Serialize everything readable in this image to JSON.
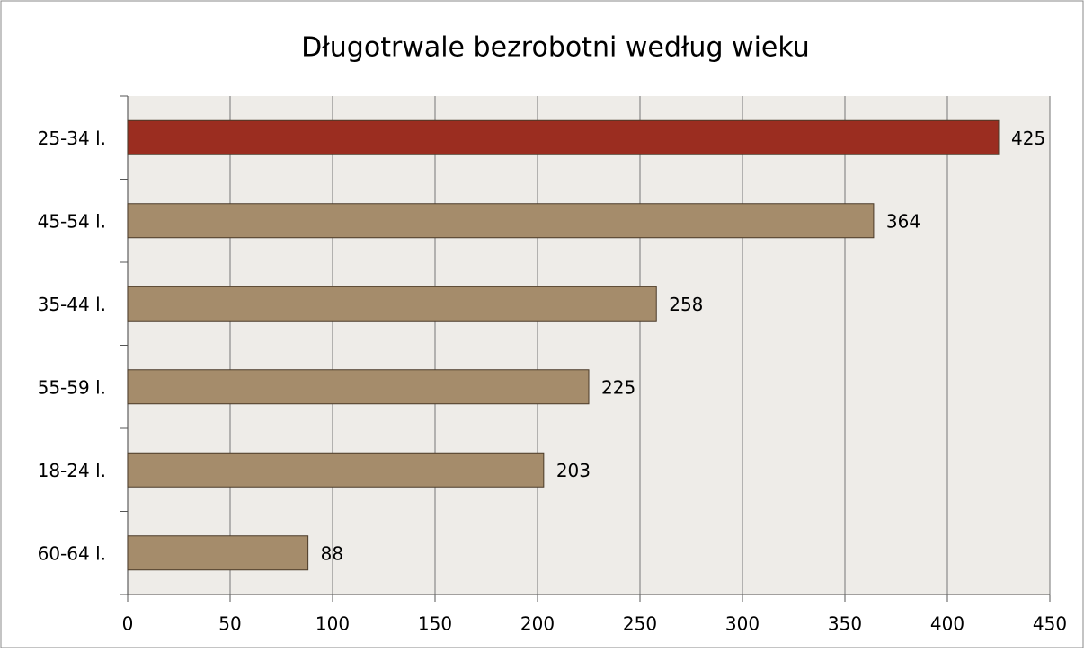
{
  "chart_data": {
    "type": "bar",
    "orientation": "horizontal",
    "title": "Długotrwale bezrobotni według wieku",
    "categories": [
      "25-34 l.",
      "45-54 l.",
      "35-44 l.",
      "55-59 l.",
      "18-24 l.",
      "60-64 l."
    ],
    "values": [
      425,
      364,
      258,
      225,
      203,
      88
    ],
    "colors": [
      "#9b2d20",
      "#a58c6b",
      "#a58c6b",
      "#a58c6b",
      "#a58c6b",
      "#a58c6b"
    ],
    "xlim": [
      0,
      450
    ],
    "xticks": [
      0,
      50,
      100,
      150,
      200,
      250,
      300,
      350,
      400,
      450
    ],
    "grid": true
  }
}
